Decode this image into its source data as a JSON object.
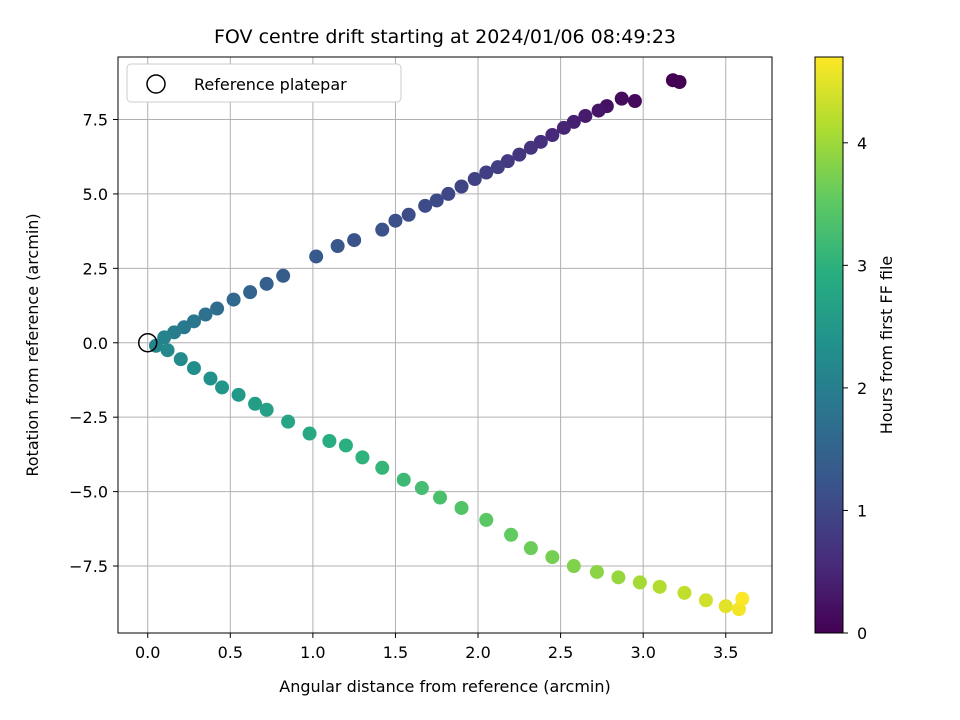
{
  "chart_data": {
    "type": "scatter",
    "title": "FOV centre drift starting at 2024/01/06 08:49:23",
    "xlabel": "Angular distance from reference (arcmin)",
    "ylabel": "Rotation from reference (arcmin)",
    "xlim": [
      -0.18,
      3.78
    ],
    "ylim": [
      -9.75,
      9.6
    ],
    "xticks": [
      0.0,
      0.5,
      1.0,
      1.5,
      2.0,
      2.5,
      3.0,
      3.5
    ],
    "xtick_labels": [
      "0.0",
      "0.5",
      "1.0",
      "1.5",
      "2.0",
      "2.5",
      "3.0",
      "3.5"
    ],
    "yticks": [
      -7.5,
      -5.0,
      -2.5,
      0.0,
      2.5,
      5.0,
      7.5
    ],
    "ytick_labels": [
      "−7.5",
      "−5.0",
      "−2.5",
      "0.0",
      "2.5",
      "5.0",
      "7.5"
    ],
    "grid": true,
    "legend": {
      "placement": "upper-left",
      "entries": [
        "Reference platepar"
      ]
    },
    "reference_point": {
      "x": 0.0,
      "y": 0.0,
      "label": "Reference platepar"
    },
    "colorbar": {
      "label": "Hours from first FF file",
      "range": [
        0,
        4.7
      ],
      "ticks": [
        0,
        1,
        2,
        3,
        4
      ],
      "tick_labels": [
        "0",
        "1",
        "2",
        "3",
        "4"
      ],
      "colormap": "viridis"
    },
    "series": [
      {
        "points": [
          {
            "x": 3.18,
            "y": 8.82,
            "h": 0.0
          },
          {
            "x": 3.22,
            "y": 8.76,
            "h": 0.02
          },
          {
            "x": 2.95,
            "y": 8.12,
            "h": 0.1
          },
          {
            "x": 2.87,
            "y": 8.2,
            "h": 0.15
          },
          {
            "x": 2.78,
            "y": 7.95,
            "h": 0.22
          },
          {
            "x": 2.73,
            "y": 7.8,
            "h": 0.28
          },
          {
            "x": 2.65,
            "y": 7.62,
            "h": 0.35
          },
          {
            "x": 2.58,
            "y": 7.42,
            "h": 0.42
          },
          {
            "x": 2.52,
            "y": 7.22,
            "h": 0.48
          },
          {
            "x": 2.45,
            "y": 6.98,
            "h": 0.55
          },
          {
            "x": 2.38,
            "y": 6.75,
            "h": 0.62
          },
          {
            "x": 2.32,
            "y": 6.55,
            "h": 0.68
          },
          {
            "x": 2.25,
            "y": 6.32,
            "h": 0.75
          },
          {
            "x": 2.18,
            "y": 6.1,
            "h": 0.8
          },
          {
            "x": 2.12,
            "y": 5.9,
            "h": 0.85
          },
          {
            "x": 2.05,
            "y": 5.72,
            "h": 0.88
          },
          {
            "x": 1.98,
            "y": 5.5,
            "h": 0.92
          },
          {
            "x": 1.9,
            "y": 5.25,
            "h": 0.96
          },
          {
            "x": 1.82,
            "y": 5.0,
            "h": 1.0
          },
          {
            "x": 1.75,
            "y": 4.78,
            "h": 1.03
          },
          {
            "x": 1.68,
            "y": 4.6,
            "h": 1.06
          },
          {
            "x": 1.58,
            "y": 4.3,
            "h": 1.1
          },
          {
            "x": 1.5,
            "y": 4.1,
            "h": 1.14
          },
          {
            "x": 1.42,
            "y": 3.8,
            "h": 1.18
          },
          {
            "x": 1.25,
            "y": 3.45,
            "h": 1.22
          },
          {
            "x": 1.15,
            "y": 3.25,
            "h": 1.26
          },
          {
            "x": 1.02,
            "y": 2.9,
            "h": 1.3
          },
          {
            "x": 0.82,
            "y": 2.25,
            "h": 1.36
          },
          {
            "x": 0.72,
            "y": 1.98,
            "h": 1.42
          },
          {
            "x": 0.62,
            "y": 1.7,
            "h": 1.5
          },
          {
            "x": 0.52,
            "y": 1.45,
            "h": 1.58
          },
          {
            "x": 0.42,
            "y": 1.15,
            "h": 1.66
          },
          {
            "x": 0.35,
            "y": 0.95,
            "h": 1.74
          },
          {
            "x": 0.28,
            "y": 0.72,
            "h": 1.82
          },
          {
            "x": 0.22,
            "y": 0.52,
            "h": 1.9
          },
          {
            "x": 0.16,
            "y": 0.35,
            "h": 1.98
          },
          {
            "x": 0.1,
            "y": 0.18,
            "h": 2.06
          },
          {
            "x": 0.05,
            "y": -0.1,
            "h": 2.12
          },
          {
            "x": 0.12,
            "y": -0.25,
            "h": 2.18
          },
          {
            "x": 0.2,
            "y": -0.55,
            "h": 2.24
          },
          {
            "x": 0.28,
            "y": -0.85,
            "h": 2.3
          },
          {
            "x": 0.38,
            "y": -1.2,
            "h": 2.38
          },
          {
            "x": 0.45,
            "y": -1.5,
            "h": 2.45
          },
          {
            "x": 0.55,
            "y": -1.75,
            "h": 2.52
          },
          {
            "x": 0.65,
            "y": -2.05,
            "h": 2.6
          },
          {
            "x": 0.72,
            "y": -2.25,
            "h": 2.66
          },
          {
            "x": 0.85,
            "y": -2.65,
            "h": 2.74
          },
          {
            "x": 0.98,
            "y": -3.05,
            "h": 2.82
          },
          {
            "x": 1.1,
            "y": -3.3,
            "h": 2.9
          },
          {
            "x": 1.2,
            "y": -3.45,
            "h": 2.96
          },
          {
            "x": 1.3,
            "y": -3.85,
            "h": 3.02
          },
          {
            "x": 1.42,
            "y": -4.2,
            "h": 3.1
          },
          {
            "x": 1.55,
            "y": -4.6,
            "h": 3.18
          },
          {
            "x": 1.66,
            "y": -4.88,
            "h": 3.26
          },
          {
            "x": 1.77,
            "y": -5.2,
            "h": 3.32
          },
          {
            "x": 1.9,
            "y": -5.55,
            "h": 3.4
          },
          {
            "x": 2.05,
            "y": -5.95,
            "h": 3.48
          },
          {
            "x": 2.2,
            "y": -6.45,
            "h": 3.55
          },
          {
            "x": 2.32,
            "y": -6.9,
            "h": 3.62
          },
          {
            "x": 2.45,
            "y": -7.2,
            "h": 3.7
          },
          {
            "x": 2.58,
            "y": -7.5,
            "h": 3.78
          },
          {
            "x": 2.72,
            "y": -7.7,
            "h": 3.86
          },
          {
            "x": 2.85,
            "y": -7.88,
            "h": 3.95
          },
          {
            "x": 2.98,
            "y": -8.05,
            "h": 4.05
          },
          {
            "x": 3.1,
            "y": -8.2,
            "h": 4.15
          },
          {
            "x": 3.25,
            "y": -8.4,
            "h": 4.25
          },
          {
            "x": 3.38,
            "y": -8.65,
            "h": 4.38
          },
          {
            "x": 3.5,
            "y": -8.85,
            "h": 4.5
          },
          {
            "x": 3.58,
            "y": -8.95,
            "h": 4.62
          },
          {
            "x": 3.6,
            "y": -8.6,
            "h": 4.68
          }
        ]
      }
    ]
  }
}
